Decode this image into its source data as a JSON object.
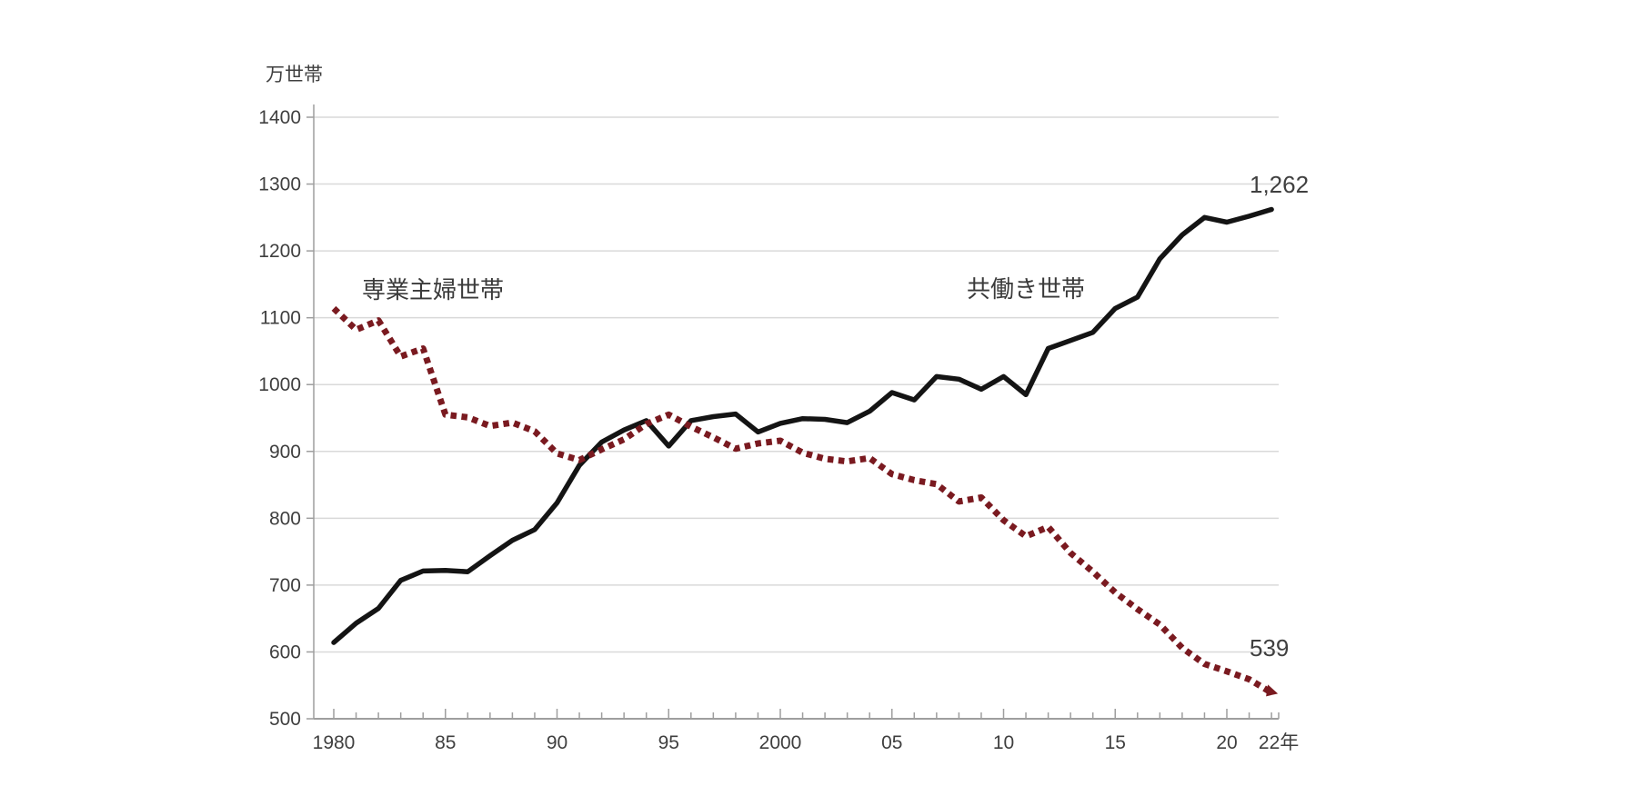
{
  "chart_data": {
    "type": "line",
    "title": "",
    "ylabel": "万世帯",
    "x_axis_suffix": "年",
    "ylim": [
      500,
      1400
    ],
    "ytick_step": 100,
    "yticks": [
      500,
      600,
      700,
      800,
      900,
      1000,
      1100,
      1200,
      1300,
      1400
    ],
    "xlim": [
      1980,
      2022
    ],
    "xtick_labels": [
      {
        "label": "1980",
        "year": 1980
      },
      {
        "label": "85",
        "year": 1985
      },
      {
        "label": "90",
        "year": 1990
      },
      {
        "label": "95",
        "year": 1995
      },
      {
        "label": "2000",
        "year": 2000
      },
      {
        "label": "05",
        "year": 2005
      },
      {
        "label": "10",
        "year": 2010
      },
      {
        "label": "15",
        "year": 2015
      },
      {
        "label": "20",
        "year": 2020
      },
      {
        "label": "22年",
        "year": 2022,
        "dx": 8
      }
    ],
    "grid": "horizontal",
    "legend_position": "inline-annotations",
    "years": [
      1980,
      1981,
      1982,
      1983,
      1984,
      1985,
      1986,
      1987,
      1988,
      1989,
      1990,
      1991,
      1992,
      1993,
      1994,
      1995,
      1996,
      1997,
      1998,
      1999,
      2000,
      2001,
      2002,
      2003,
      2004,
      2005,
      2006,
      2007,
      2008,
      2009,
      2010,
      2011,
      2012,
      2013,
      2014,
      2015,
      2016,
      2017,
      2018,
      2019,
      2020,
      2021,
      2022
    ],
    "series": [
      {
        "name": "共働き世帯",
        "style": "solid",
        "color": "#141414",
        "end_label": "1,262",
        "end_value": 1262,
        "values": [
          614,
          643,
          665,
          707,
          721,
          722,
          720,
          744,
          767,
          783,
          823,
          879,
          914,
          932,
          946,
          908,
          946,
          952,
          956,
          929,
          942,
          949,
          948,
          943,
          960,
          988,
          977,
          1012,
          1008,
          993,
          1012,
          985,
          1054,
          1066,
          1078,
          1114,
          1131,
          1188,
          1224,
          1250,
          1243,
          1252,
          1262
        ]
      },
      {
        "name": "専業主婦世帯",
        "style": "dotted",
        "color": "#7a1a20",
        "end_label": "539",
        "end_value": 539,
        "end_marker": "arrow",
        "values": [
          1114,
          1082,
          1096,
          1042,
          1054,
          955,
          951,
          938,
          943,
          930,
          897,
          887,
          903,
          918,
          941,
          955,
          937,
          921,
          904,
          912,
          916,
          898,
          889,
          885,
          890,
          866,
          857,
          851,
          825,
          831,
          797,
          773,
          787,
          748,
          720,
          689,
          664,
          641,
          606,
          582,
          571,
          559,
          539
        ]
      }
    ],
    "colors": {
      "gridline": "#d9d9d9",
      "axis": "#9e9e9e",
      "tick_text": "#3f3f3f"
    }
  }
}
